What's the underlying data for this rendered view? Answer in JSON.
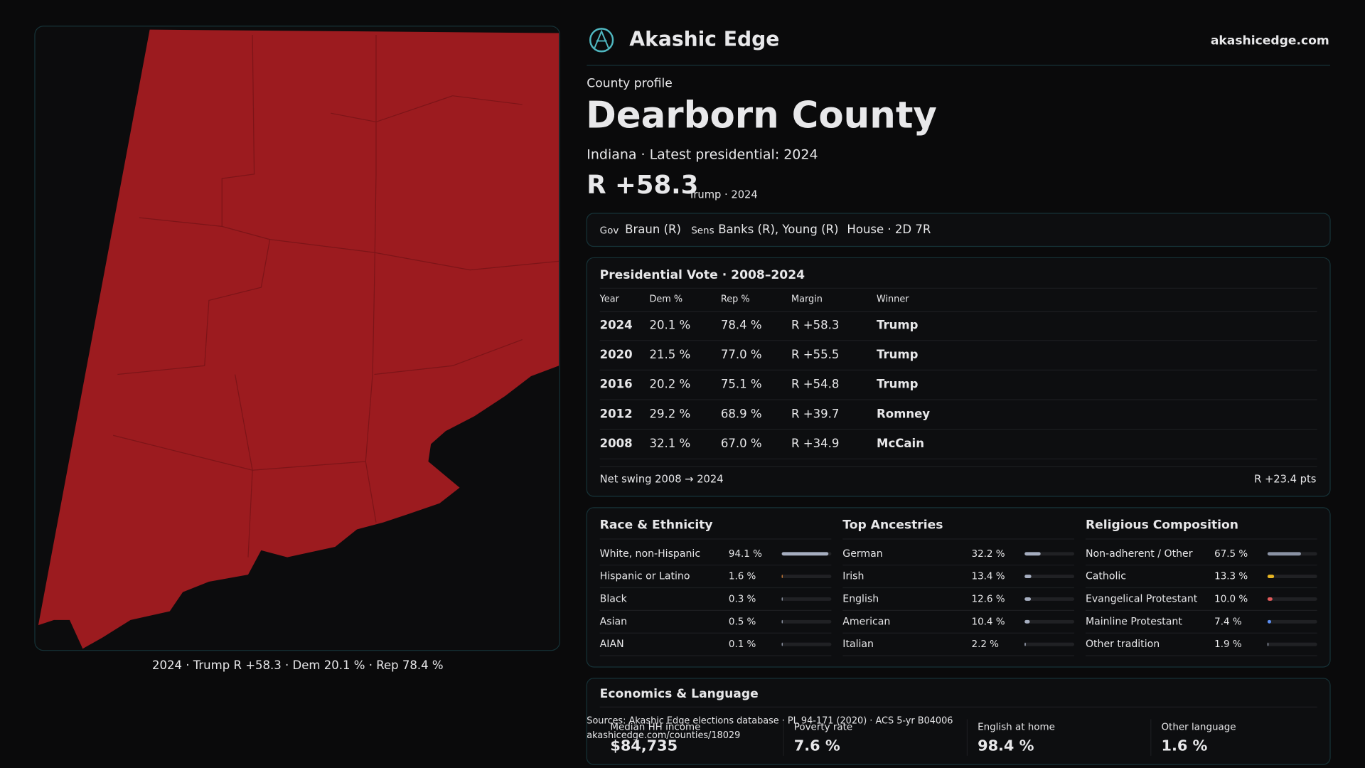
{
  "header": {
    "brand": "Akashic Edge",
    "site": "akashicedge.com"
  },
  "profile": {
    "label": "County profile",
    "title": "Dearborn County",
    "subtitle": "Indiana · Latest presidential: 2024",
    "margin": "R +58.3",
    "margin_note": "Trump · 2024"
  },
  "officials": {
    "gov_label": "Gov",
    "gov": "Braun (R)",
    "sens_label": "Sens",
    "sens": "Banks (R), Young (R)",
    "house": "House · 2D 7R"
  },
  "presidential": {
    "title": "Presidential Vote · 2008–2024",
    "columns": [
      "Year",
      "Dem %",
      "Rep %",
      "Margin",
      "Winner"
    ],
    "rows": [
      [
        "2024",
        "20.1 %",
        "78.4 %",
        "R +58.3",
        "Trump"
      ],
      [
        "2020",
        "21.5 %",
        "77.0 %",
        "R +55.5",
        "Trump"
      ],
      [
        "2016",
        "20.2 %",
        "75.1 %",
        "R +54.8",
        "Trump"
      ],
      [
        "2012",
        "29.2 %",
        "68.9 %",
        "R +39.7",
        "Romney"
      ],
      [
        "2008",
        "32.1 %",
        "67.0 %",
        "R +34.9",
        "McCain"
      ]
    ],
    "swing_label": "Net swing 2008 → 2024",
    "swing": "R +23.4 pts"
  },
  "demographics": [
    {
      "title": "Race & Ethnicity",
      "items": [
        {
          "name": "White, non-Hispanic",
          "value": 94.1,
          "label": "94.1 %",
          "color": "#a6aec0"
        },
        {
          "name": "Hispanic or Latino",
          "value": 1.6,
          "label": "1.6 %",
          "color": "#e58a3a"
        },
        {
          "name": "Black",
          "value": 0.3,
          "label": "0.3 %",
          "color": "#a6aec0"
        },
        {
          "name": "Asian",
          "value": 0.5,
          "label": "0.5 %",
          "color": "#a6aec0"
        },
        {
          "name": "AIAN",
          "value": 0.1,
          "label": "0.1 %",
          "color": "#a6aec0"
        }
      ]
    },
    {
      "title": "Top Ancestries",
      "items": [
        {
          "name": "German",
          "value": 32.2,
          "label": "32.2 %",
          "color": "#a6aec0"
        },
        {
          "name": "Irish",
          "value": 13.4,
          "label": "13.4 %",
          "color": "#a6aec0"
        },
        {
          "name": "English",
          "value": 12.6,
          "label": "12.6 %",
          "color": "#a6aec0"
        },
        {
          "name": "American",
          "value": 10.4,
          "label": "10.4 %",
          "color": "#a6aec0"
        },
        {
          "name": "Italian",
          "value": 2.2,
          "label": "2.2 %",
          "color": "#a6aec0"
        }
      ]
    },
    {
      "title": "Religious Composition",
      "items": [
        {
          "name": "Non-adherent / Other",
          "value": 67.5,
          "label": "67.5 %",
          "color": "#8a92a4"
        },
        {
          "name": "Catholic",
          "value": 13.3,
          "label": "13.3 %",
          "color": "#e6b422"
        },
        {
          "name": "Evangelical Protestant",
          "value": 10.0,
          "label": "10.0 %",
          "color": "#e05a5a"
        },
        {
          "name": "Mainline Protestant",
          "value": 7.4,
          "label": "7.4 %",
          "color": "#5b8def"
        },
        {
          "name": "Other tradition",
          "value": 1.9,
          "label": "1.9 %",
          "color": "#a6aec0"
        }
      ]
    }
  ],
  "economics": {
    "title": "Economics & Language",
    "items": [
      {
        "label": "Median HH income",
        "value": "$84,735"
      },
      {
        "label": "Poverty rate",
        "value": "7.6 %"
      },
      {
        "label": "English at home",
        "value": "98.4 %"
      },
      {
        "label": "Other language",
        "value": "1.6 %"
      }
    ]
  },
  "sources": [
    "Sources: Akashic Edge elections database · PL 94-171 (2020) · ACS 5-yr B04006",
    "akashicedge.com/counties/18029"
  ],
  "map_caption": "2024 · Trump R +58.3 · Dem 20.1 % · Rep 78.4 %"
}
